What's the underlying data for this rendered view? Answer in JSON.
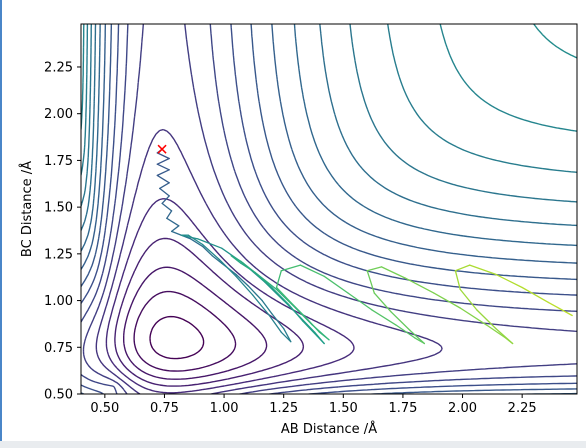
{
  "chart_data": {
    "type": "contour",
    "title": "",
    "xlabel": "AB Distance /Å",
    "ylabel": "BC Distance /Å",
    "xlim": [
      0.4,
      2.48
    ],
    "ylim": [
      0.5,
      2.48
    ],
    "x_ticks": [
      "0.50",
      "0.75",
      "1.00",
      "1.25",
      "1.50",
      "1.75",
      "2.00",
      "2.25"
    ],
    "y_ticks": [
      "0.50",
      "0.75",
      "1.00",
      "1.25",
      "1.50",
      "1.75",
      "2.00",
      "2.25"
    ],
    "colormap": "viridis",
    "grid": false,
    "surface": {
      "well_distance": 0.74,
      "asymptote_description": "LEPS-like potential energy surface with contour levels"
    },
    "start_marker": {
      "x": 0.74,
      "y": 1.81,
      "symbol": "×",
      "color": "#ff0000"
    },
    "trajectory": [
      [
        0.74,
        1.81
      ],
      [
        0.72,
        1.79
      ],
      [
        0.77,
        1.76
      ],
      [
        0.72,
        1.73
      ],
      [
        0.77,
        1.7
      ],
      [
        0.72,
        1.67
      ],
      [
        0.77,
        1.63
      ],
      [
        0.73,
        1.6
      ],
      [
        0.77,
        1.56
      ],
      [
        0.74,
        1.52
      ],
      [
        0.78,
        1.48
      ],
      [
        0.76,
        1.44
      ],
      [
        0.81,
        1.4
      ],
      [
        0.78,
        1.37
      ],
      [
        0.86,
        1.33
      ],
      [
        0.91,
        1.29
      ],
      [
        0.95,
        1.24
      ],
      [
        0.99,
        1.2
      ],
      [
        1.05,
        1.14
      ],
      [
        1.1,
        1.08
      ],
      [
        1.16,
        1.0
      ],
      [
        1.2,
        0.93
      ],
      [
        1.25,
        0.85
      ],
      [
        1.28,
        0.78
      ],
      [
        1.24,
        0.83
      ],
      [
        1.19,
        0.92
      ],
      [
        1.12,
        1.03
      ],
      [
        1.05,
        1.13
      ],
      [
        0.98,
        1.22
      ],
      [
        0.91,
        1.3
      ],
      [
        0.85,
        1.35
      ],
      [
        0.82,
        1.35
      ],
      [
        0.89,
        1.33
      ],
      [
        0.99,
        1.28
      ],
      [
        1.08,
        1.2
      ],
      [
        1.17,
        1.1
      ],
      [
        1.25,
        1.0
      ],
      [
        1.32,
        0.91
      ],
      [
        1.38,
        0.83
      ],
      [
        1.42,
        0.77
      ],
      [
        1.39,
        0.81
      ],
      [
        1.33,
        0.89
      ],
      [
        1.27,
        0.98
      ],
      [
        1.2,
        1.07
      ],
      [
        1.13,
        1.15
      ],
      [
        1.07,
        1.2
      ],
      [
        1.03,
        1.24
      ],
      [
        1.07,
        1.21
      ],
      [
        1.14,
        1.14
      ],
      [
        1.22,
        1.06
      ],
      [
        1.3,
        0.96
      ],
      [
        1.37,
        0.87
      ],
      [
        1.44,
        0.79
      ],
      [
        1.4,
        0.83
      ],
      [
        1.35,
        0.9
      ],
      [
        1.28,
        0.99
      ],
      [
        1.22,
        1.07
      ],
      [
        1.24,
        1.16
      ],
      [
        1.32,
        1.19
      ],
      [
        1.42,
        1.13
      ],
      [
        1.52,
        1.04
      ],
      [
        1.62,
        0.95
      ],
      [
        1.72,
        0.87
      ],
      [
        1.8,
        0.8
      ],
      [
        1.84,
        0.77
      ],
      [
        1.78,
        0.84
      ],
      [
        1.7,
        0.94
      ],
      [
        1.63,
        1.04
      ],
      [
        1.6,
        1.16
      ],
      [
        1.66,
        1.18
      ],
      [
        1.76,
        1.12
      ],
      [
        1.88,
        1.04
      ],
      [
        1.99,
        0.96
      ],
      [
        2.1,
        0.87
      ],
      [
        2.18,
        0.8
      ],
      [
        2.21,
        0.77
      ],
      [
        2.14,
        0.85
      ],
      [
        2.06,
        0.95
      ],
      [
        1.99,
        1.06
      ],
      [
        1.97,
        1.16
      ],
      [
        2.03,
        1.19
      ],
      [
        2.14,
        1.14
      ],
      [
        2.25,
        1.07
      ],
      [
        2.36,
        0.99
      ],
      [
        2.46,
        0.92
      ]
    ]
  }
}
